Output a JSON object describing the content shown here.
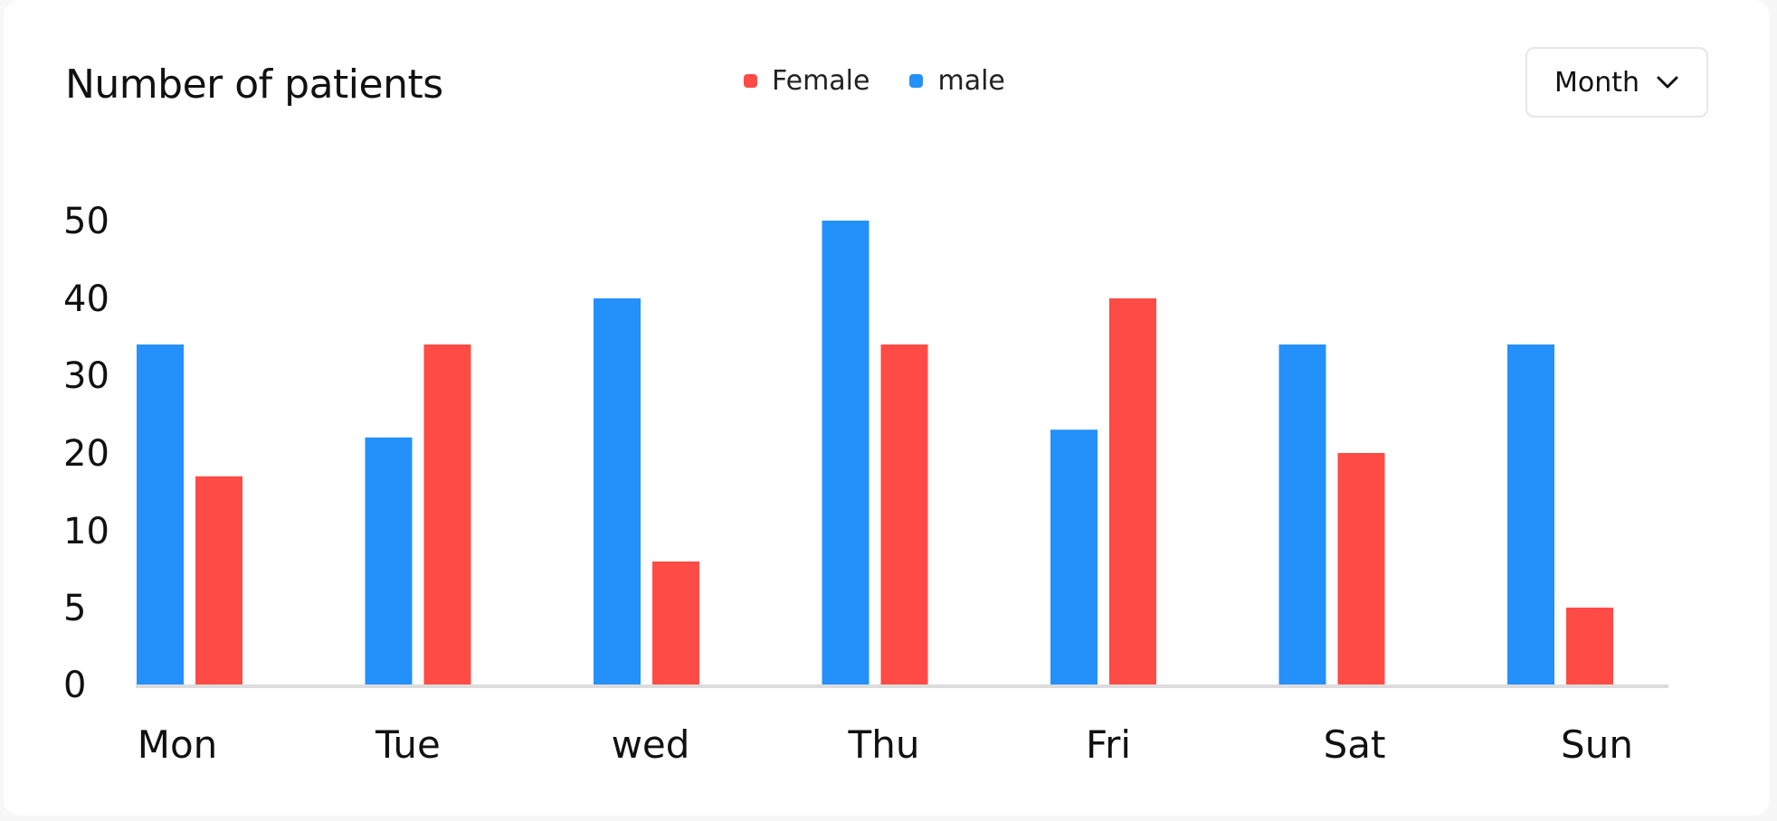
{
  "card": {
    "title": "Number of patients",
    "period_label": "Month"
  },
  "colors": {
    "female": "#ff4b45",
    "male": "#2490fa",
    "baseline": "#dcdcdc"
  },
  "chart_data": {
    "type": "bar",
    "title": "Number of patients",
    "categories": [
      "Mon",
      "Tue",
      "wed",
      "Thu",
      "Fri",
      "Sat",
      "Sun"
    ],
    "series": [
      {
        "name": "male",
        "values": [
          34,
          22,
          40,
          50,
          23,
          34,
          34
        ]
      },
      {
        "name": "Female",
        "values": [
          17,
          34,
          8,
          34,
          40,
          20,
          5
        ]
      }
    ],
    "legend": [
      "Female",
      "male"
    ],
    "legend_position": "top-center",
    "y_ticks": [
      "0",
      "5",
      "10",
      "20",
      "30",
      "40",
      "50"
    ],
    "grid": false
  }
}
